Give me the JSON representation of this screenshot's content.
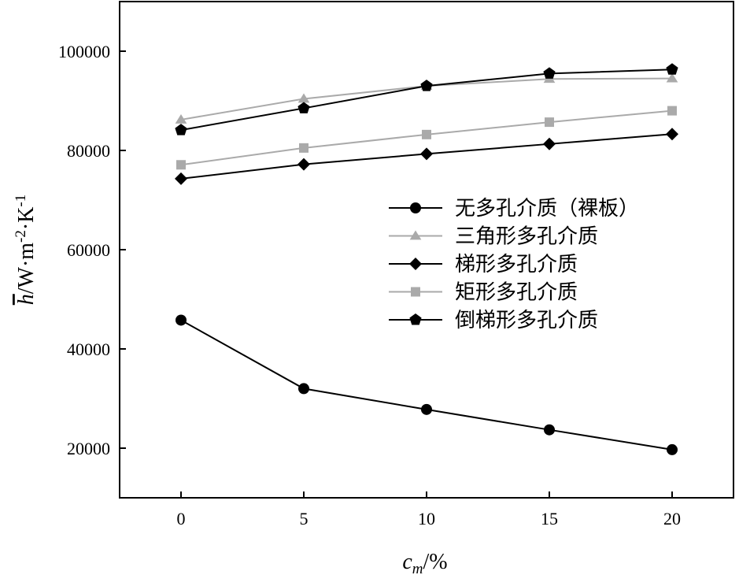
{
  "chart_data": {
    "type": "line",
    "title": "",
    "xlabel": "c_m/%",
    "ylabel": "h̄/W·m⁻²·K⁻¹",
    "x": [
      0,
      5,
      10,
      15,
      20
    ],
    "xlim": [
      -2.5,
      22.5
    ],
    "ylim": [
      10000,
      110000
    ],
    "xticks": [
      0,
      5,
      10,
      15,
      20
    ],
    "yticks": [
      20000,
      40000,
      60000,
      80000,
      100000
    ],
    "grid": false,
    "legend_position": "right-middle",
    "series": [
      {
        "name": "无多孔介质（裸板）",
        "marker": "circle",
        "color": "#000000",
        "values": [
          45800,
          32000,
          27800,
          23700,
          19700
        ]
      },
      {
        "name": "三角形多孔介质",
        "marker": "triangle",
        "color": "#aaaaaa",
        "values": [
          86200,
          90400,
          93000,
          94400,
          94500
        ]
      },
      {
        "name": "梯形多孔介质",
        "marker": "diamond",
        "color": "#000000",
        "values": [
          74300,
          77200,
          79300,
          81300,
          83300
        ]
      },
      {
        "name": "矩形多孔介质",
        "marker": "square",
        "color": "#aaaaaa",
        "values": [
          77100,
          80500,
          83200,
          85700,
          88000
        ]
      },
      {
        "name": "倒梯形多孔介质",
        "marker": "pentagon",
        "color": "#000000",
        "values": [
          84100,
          88500,
          93000,
          95500,
          96300
        ]
      }
    ]
  }
}
